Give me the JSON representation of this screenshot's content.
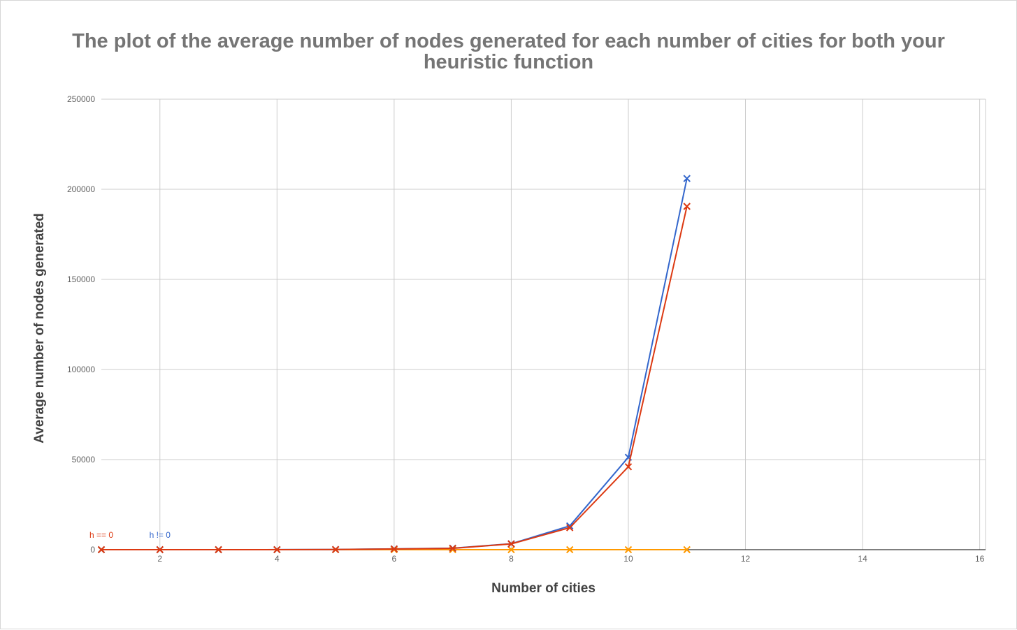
{
  "chart_data": {
    "type": "line",
    "title": "The plot of the average number of nodes generated for each number of cities for both your heuristic function",
    "xlabel": "Number of cities",
    "ylabel": "Average number of nodes generated",
    "xlim": [
      1,
      16.1
    ],
    "ylim": [
      0,
      250000
    ],
    "xticks": [
      2,
      4,
      6,
      8,
      10,
      12,
      14,
      16
    ],
    "yticks": [
      0,
      50000,
      100000,
      150000,
      200000,
      250000
    ],
    "grid": true,
    "series": [
      {
        "name": "h != 0",
        "color": "#3366cc",
        "x": [
          1,
          2,
          3,
          4,
          5,
          6,
          7,
          8,
          9,
          10,
          11
        ],
        "y": [
          1,
          2,
          7,
          25,
          110,
          450,
          830,
          3300,
          13200,
          51300,
          206000
        ]
      },
      {
        "name": "h == 0",
        "color": "#dc3912",
        "x": [
          1,
          2,
          3,
          4,
          5,
          6,
          7,
          8,
          9,
          10,
          11
        ],
        "y": [
          1,
          2,
          6,
          20,
          90,
          400,
          750,
          3200,
          12200,
          46000,
          190500
        ]
      },
      {
        "name": "",
        "color": "#ff9900",
        "x": [
          1,
          2,
          3,
          4,
          5,
          6,
          7,
          8,
          9,
          10,
          11
        ],
        "y": [
          0,
          0,
          0,
          0,
          0,
          0,
          0,
          0,
          0,
          0,
          0
        ]
      }
    ],
    "annotations": [
      {
        "text": "h == 0",
        "x": 1,
        "y": 0,
        "color": "#dc3912"
      },
      {
        "text": "h != 0",
        "x": 2,
        "y": 0,
        "color": "#3366cc"
      }
    ],
    "grid_color": "#cccccc",
    "axis_color": "#333333",
    "tick_label_color": "#616161"
  }
}
